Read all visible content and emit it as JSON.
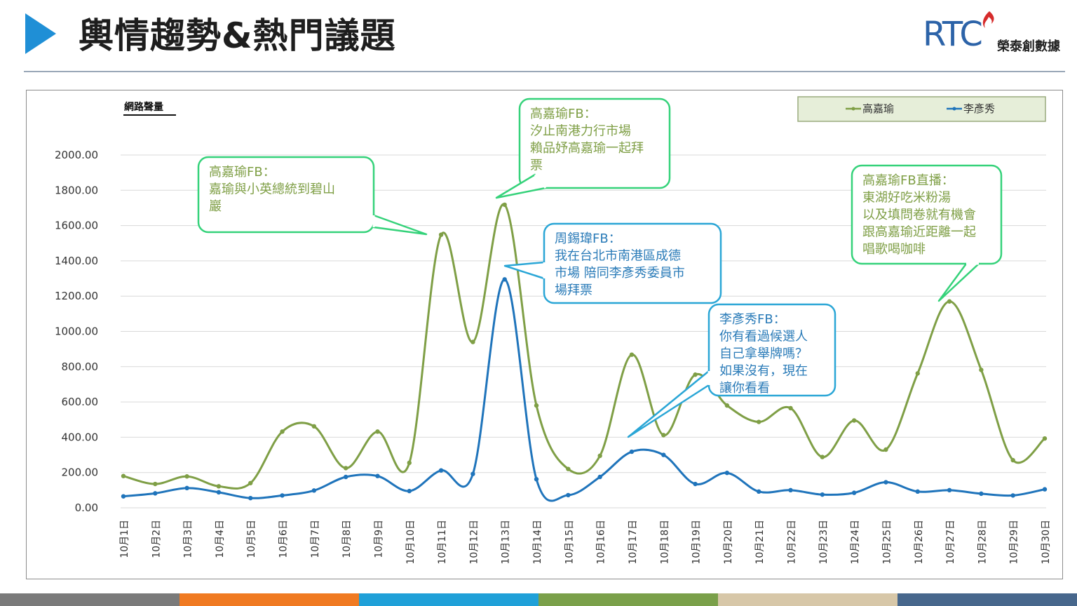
{
  "header": {
    "title": "輿情趨勢&熱門議題",
    "logo_mark": "RTC",
    "logo_name": "榮泰創數據",
    "accent": "#1f8fd6"
  },
  "footer": {
    "colors": [
      "#7a7a7a",
      "#f07a22",
      "#1fa0d8",
      "#7aa04a",
      "#d7c7a8",
      "#47678c"
    ]
  },
  "chart_data": {
    "type": "line",
    "ylabel": "網路聲量",
    "ylim": [
      0,
      2000
    ],
    "yticks": [
      "2000.00",
      "1800.00",
      "1600.00",
      "1400.00",
      "1200.00",
      "1000.00",
      "800.00",
      "600.00",
      "400.00",
      "200.00",
      "0.00"
    ],
    "categories": [
      "10月1日",
      "10月2日",
      "10月3日",
      "10月4日",
      "10月5日",
      "10月6日",
      "10月7日",
      "10月8日",
      "10月9日",
      "10月10日",
      "10月11日",
      "10月12日",
      "10月13日",
      "10月14日",
      "10月15日",
      "10月16日",
      "10月17日",
      "10月18日",
      "10月19日",
      "10月20日",
      "10月21日",
      "10月22日",
      "10月23日",
      "10月24日",
      "10月25日",
      "10月26日",
      "10月27日",
      "10月28日",
      "10月29日",
      "10月30日"
    ],
    "legend_position": "top-right",
    "grid": true,
    "series": [
      {
        "name": "高嘉瑜",
        "color": "#7f9f46",
        "values": [
          180,
          135,
          178,
          122,
          140,
          432,
          462,
          225,
          432,
          255,
          1548,
          940,
          1718,
          580,
          220,
          295,
          868,
          412,
          755,
          580,
          487,
          565,
          288,
          495,
          330,
          762,
          1170,
          782,
          270,
          393
        ]
      },
      {
        "name": "李彥秀",
        "color": "#1f74bb",
        "values": [
          65,
          82,
          112,
          88,
          55,
          70,
          98,
          175,
          180,
          95,
          212,
          192,
          1295,
          162,
          72,
          175,
          318,
          300,
          135,
          198,
          92,
          100,
          75,
          85,
          145,
          92,
          100,
          80,
          70,
          105
        ]
      }
    ],
    "annotations": [
      {
        "series": 0,
        "lines": [
          "高嘉瑜FB：",
          "嘉瑜與小英總統到碧山",
          "巖"
        ]
      },
      {
        "series": 0,
        "lines": [
          "高嘉瑜FB：",
          "汐止南港力行市場",
          "賴品妤高嘉瑜一起拜",
          "票"
        ]
      },
      {
        "series": 1,
        "lines": [
          "周錫瑋FB：",
          "我在台北市南港區成德",
          "市場 陪同李彥秀委員市",
          "場拜票"
        ]
      },
      {
        "series": 1,
        "lines": [
          "李彥秀FB：",
          "你有看過候選人",
          "自己拿舉牌嗎？",
          "如果沒有，現在",
          "讓你看看"
        ]
      },
      {
        "series": 0,
        "lines": [
          "高嘉瑜FB直播：",
          "東湖好吃米粉湯",
          "以及填問卷就有機會",
          "跟高嘉瑜近距離一起",
          "唱歌喝咖啡"
        ]
      }
    ],
    "colors": {
      "callout_green": "#35d27a",
      "callout_blue": "#2aa6d6",
      "legend_bg": "#e6eed9",
      "legend_border": "#9aab7e"
    }
  }
}
